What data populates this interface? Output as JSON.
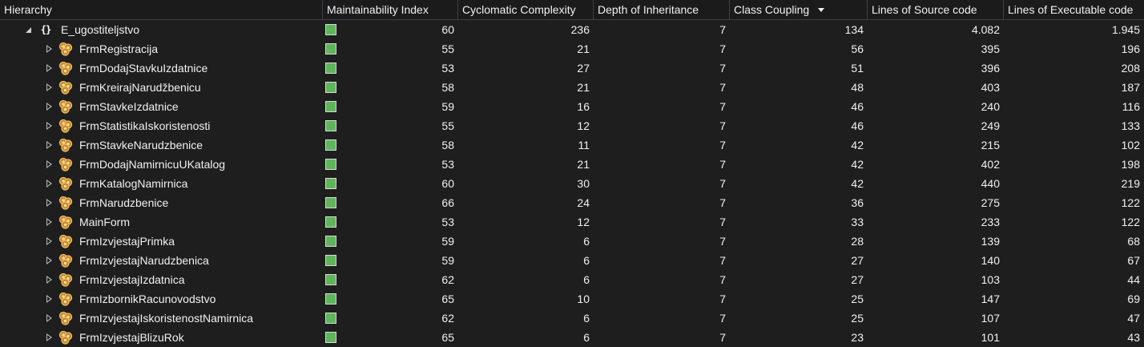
{
  "header": {
    "hierarchy": "Hierarchy",
    "maintainability_index": "Maintainability Index",
    "cyclomatic_complexity": "Cyclomatic Complexity",
    "depth_of_inheritance": "Depth of Inheritance",
    "class_coupling": "Class Coupling",
    "lines_of_source_code": "Lines of Source code",
    "lines_of_executable_code": "Lines of Executable code",
    "sort_column": "class_coupling",
    "sort_direction": "descending"
  },
  "colors": {
    "background": "#1e1e1e",
    "header_background": "#1b1b1c",
    "text": "#f1f1f1",
    "maintainability_good": "#5fb55a",
    "class_icon": "#d79a3a"
  },
  "icons": {
    "namespace": "namespace-icon",
    "class": "class-icon",
    "expanded": "expanded-arrow-icon",
    "collapsed": "collapsed-arrow-icon",
    "maintainability": "green-rating-icon"
  },
  "rows": [
    {
      "name": "E_ugostiteljstvo",
      "type": "namespace",
      "expanded": true,
      "mi": "60",
      "cc": "236",
      "di": "7",
      "coupling": "134",
      "loc": "4.082",
      "exec": "1.945"
    },
    {
      "name": "FrmRegistracija",
      "type": "class",
      "expanded": false,
      "mi": "55",
      "cc": "21",
      "di": "7",
      "coupling": "56",
      "loc": "395",
      "exec": "196"
    },
    {
      "name": "FrmDodajStavkuIzdatnice",
      "type": "class",
      "expanded": false,
      "mi": "53",
      "cc": "27",
      "di": "7",
      "coupling": "51",
      "loc": "396",
      "exec": "208"
    },
    {
      "name": "FrmKreirajNarudžbenicu",
      "type": "class",
      "expanded": false,
      "mi": "58",
      "cc": "21",
      "di": "7",
      "coupling": "48",
      "loc": "403",
      "exec": "187"
    },
    {
      "name": "FrmStavkeIzdatnice",
      "type": "class",
      "expanded": false,
      "mi": "59",
      "cc": "16",
      "di": "7",
      "coupling": "46",
      "loc": "240",
      "exec": "116"
    },
    {
      "name": "FrmStatistikaIskoristenosti",
      "type": "class",
      "expanded": false,
      "mi": "55",
      "cc": "12",
      "di": "7",
      "coupling": "46",
      "loc": "249",
      "exec": "133"
    },
    {
      "name": "FrmStavkeNarudzbenice",
      "type": "class",
      "expanded": false,
      "mi": "58",
      "cc": "11",
      "di": "7",
      "coupling": "42",
      "loc": "215",
      "exec": "102"
    },
    {
      "name": "FrmDodajNamirnicuUKatalog",
      "type": "class",
      "expanded": false,
      "mi": "53",
      "cc": "21",
      "di": "7",
      "coupling": "42",
      "loc": "402",
      "exec": "198"
    },
    {
      "name": "FrmKatalogNamirnica",
      "type": "class",
      "expanded": false,
      "mi": "60",
      "cc": "30",
      "di": "7",
      "coupling": "42",
      "loc": "440",
      "exec": "219"
    },
    {
      "name": "FrmNarudzbenice",
      "type": "class",
      "expanded": false,
      "mi": "66",
      "cc": "24",
      "di": "7",
      "coupling": "36",
      "loc": "275",
      "exec": "122"
    },
    {
      "name": "MainForm",
      "type": "class",
      "expanded": false,
      "mi": "53",
      "cc": "12",
      "di": "7",
      "coupling": "33",
      "loc": "233",
      "exec": "122"
    },
    {
      "name": "FrmIzvjestajPrimka",
      "type": "class",
      "expanded": false,
      "mi": "59",
      "cc": "6",
      "di": "7",
      "coupling": "28",
      "loc": "139",
      "exec": "68"
    },
    {
      "name": "FrmIzvjestajNarudzbenica",
      "type": "class",
      "expanded": false,
      "mi": "59",
      "cc": "6",
      "di": "7",
      "coupling": "27",
      "loc": "140",
      "exec": "67"
    },
    {
      "name": "FrmIzvjestajIzdatnica",
      "type": "class",
      "expanded": false,
      "mi": "62",
      "cc": "6",
      "di": "7",
      "coupling": "27",
      "loc": "103",
      "exec": "44"
    },
    {
      "name": "FrmIzbornikRacunovodstvo",
      "type": "class",
      "expanded": false,
      "mi": "65",
      "cc": "10",
      "di": "7",
      "coupling": "25",
      "loc": "147",
      "exec": "69"
    },
    {
      "name": "FrmIzvjestajIskoristenostNamirnica",
      "type": "class",
      "expanded": false,
      "mi": "62",
      "cc": "6",
      "di": "7",
      "coupling": "25",
      "loc": "107",
      "exec": "47"
    },
    {
      "name": "FrmIzvjestajBlizuRok",
      "type": "class",
      "expanded": false,
      "mi": "65",
      "cc": "6",
      "di": "7",
      "coupling": "23",
      "loc": "101",
      "exec": "43"
    }
  ]
}
